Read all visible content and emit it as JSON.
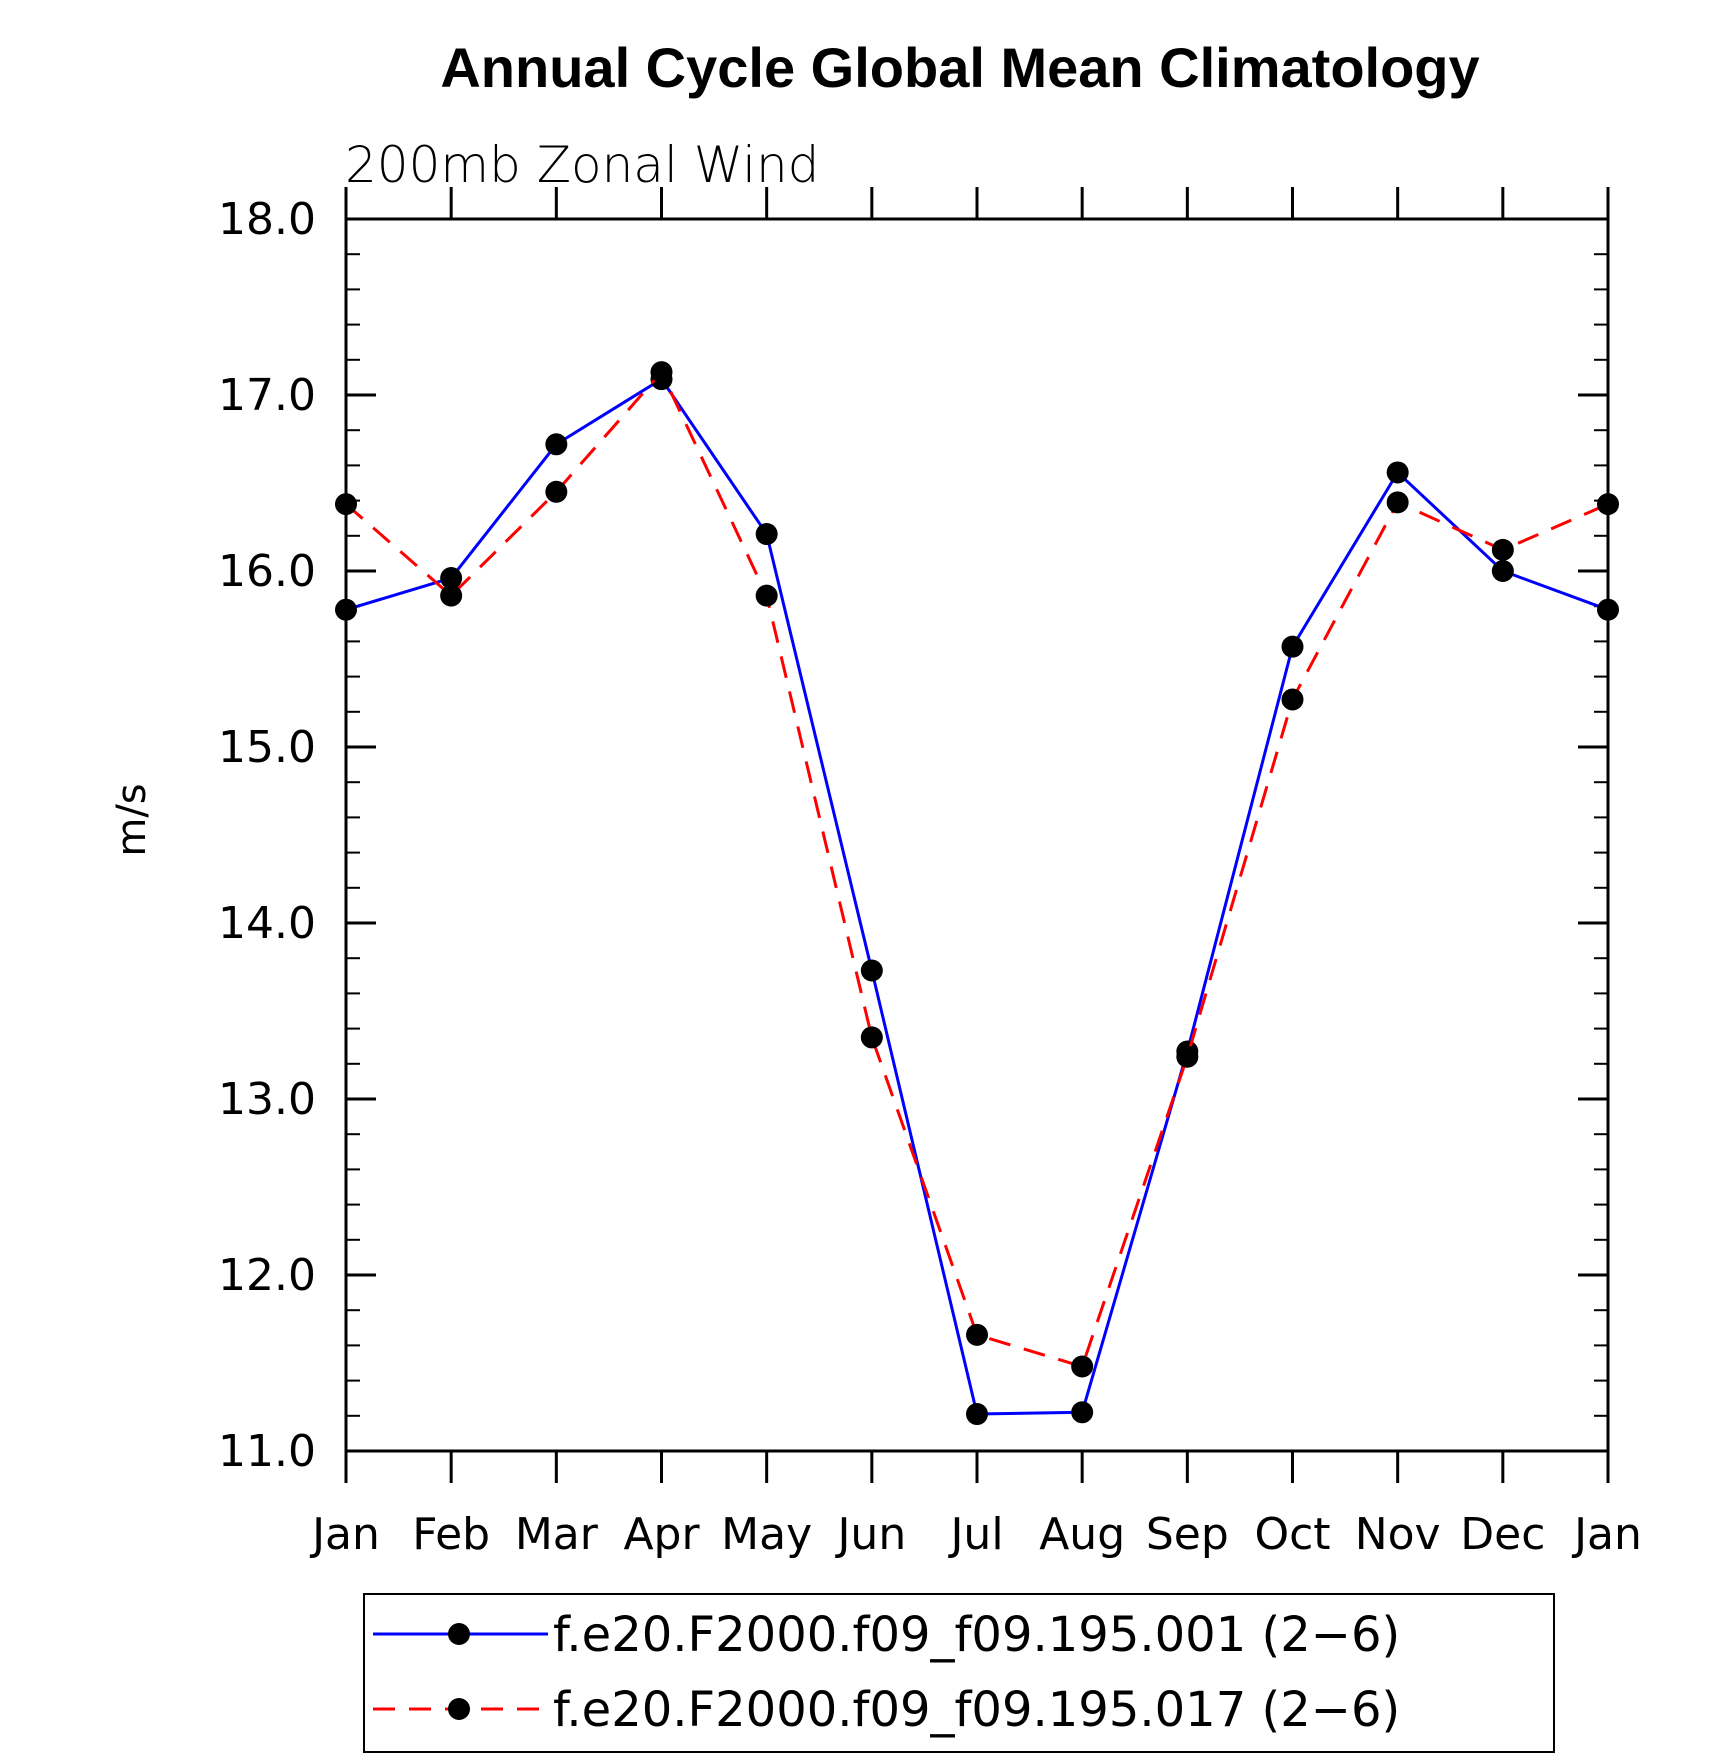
{
  "chart_data": {
    "type": "line",
    "title": "Annual Cycle Global Mean Climatology",
    "subtitle": "200mb Zonal Wind",
    "ylabel": "m/s",
    "xlabel": "",
    "categories": [
      "Jan",
      "Feb",
      "Mar",
      "Apr",
      "May",
      "Jun",
      "Jul",
      "Aug",
      "Sep",
      "Oct",
      "Nov",
      "Dec",
      "Jan"
    ],
    "ylim": [
      11.0,
      18.0
    ],
    "yticks": [
      "11.0",
      "12.0",
      "13.0",
      "14.0",
      "15.0",
      "16.0",
      "17.0",
      "18.0"
    ],
    "legend_position": "bottom",
    "grid": false,
    "series": [
      {
        "name": "f.e20.F2000.f09_f09.195.001 (2−6)",
        "color": "#0000ff",
        "dash": "solid",
        "values": [
          15.78,
          15.96,
          16.72,
          17.09,
          16.21,
          13.73,
          11.21,
          11.22,
          13.27,
          15.57,
          16.56,
          16.0,
          15.78
        ]
      },
      {
        "name": "f.e20.F2000.f09_f09.195.017 (2−6)",
        "color": "#ff0000",
        "dash": "dashed",
        "values": [
          16.38,
          15.86,
          16.45,
          17.13,
          15.86,
          13.35,
          11.66,
          11.48,
          13.24,
          15.27,
          16.39,
          16.12,
          16.38
        ]
      }
    ]
  }
}
